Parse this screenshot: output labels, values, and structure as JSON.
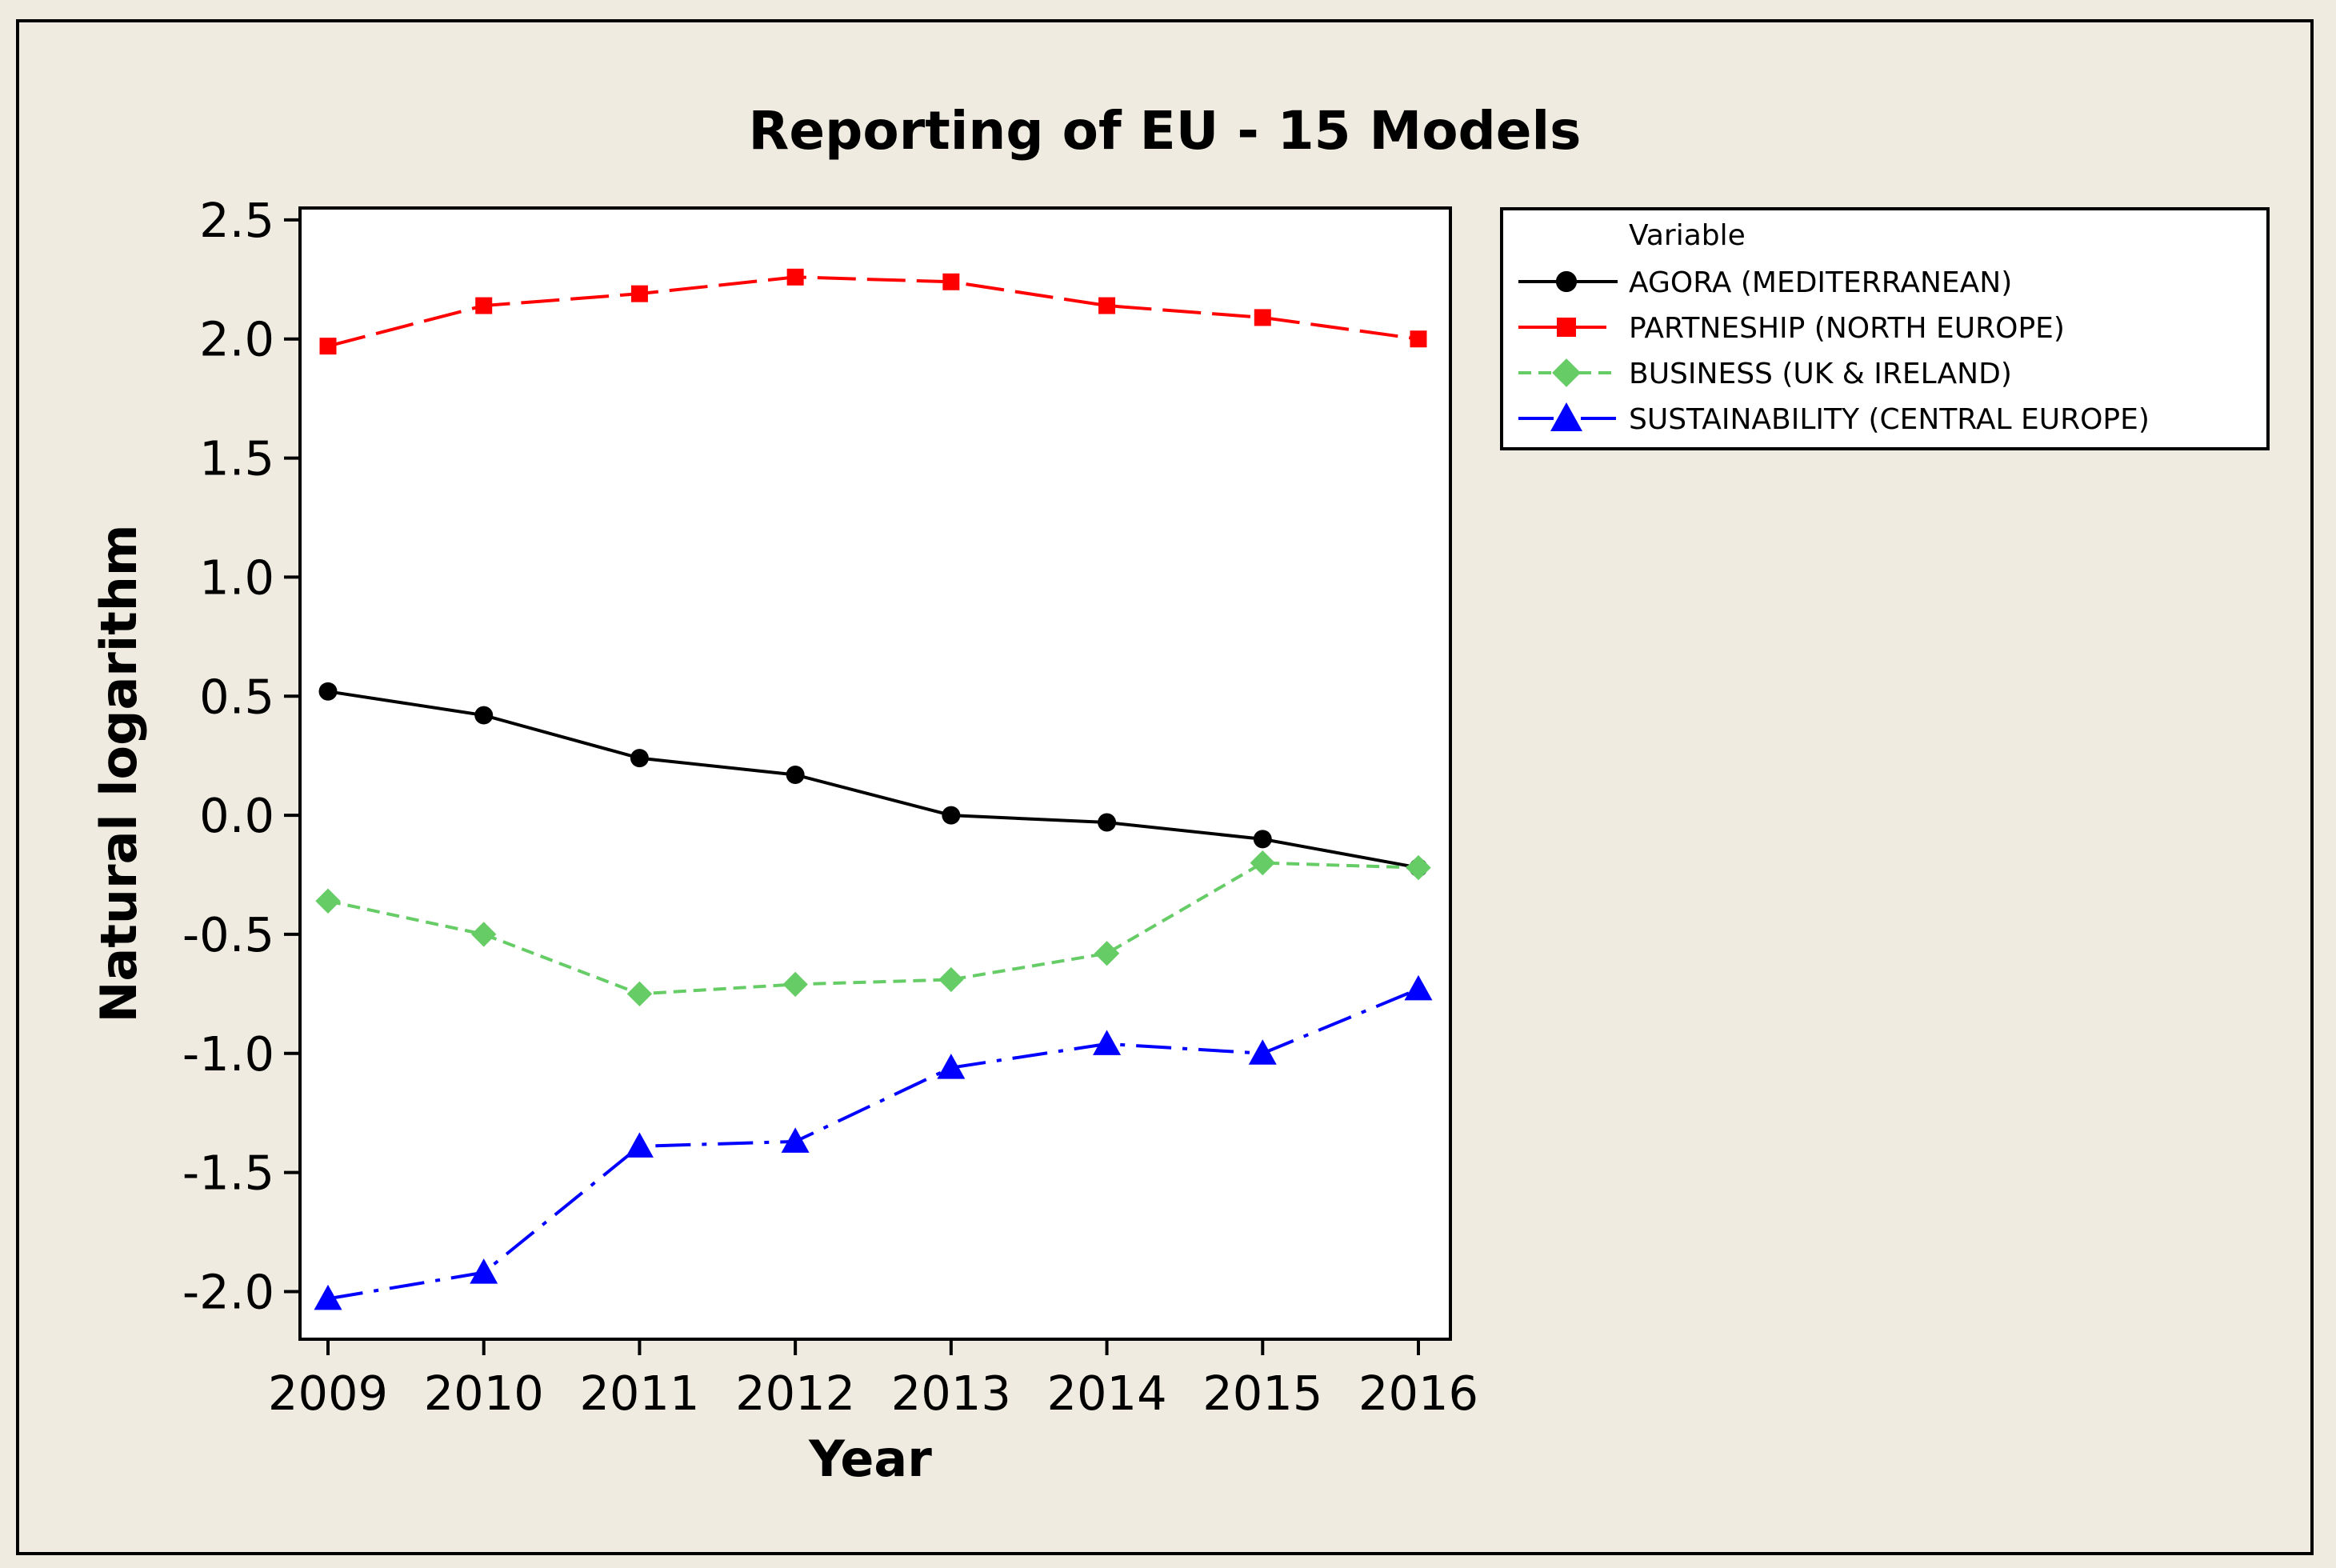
{
  "chart_data": {
    "type": "line",
    "title": "Reporting of EU - 15 Models",
    "xlabel": "Year",
    "ylabel": "Natural logarithm",
    "x": [
      2009,
      2010,
      2011,
      2012,
      2013,
      2014,
      2015,
      2016
    ],
    "x_tick_labels": [
      "2009",
      "2010",
      "2011",
      "2012",
      "2013",
      "2014",
      "2015",
      "2016"
    ],
    "ylim": [
      -2.2,
      2.55
    ],
    "y_ticks": [
      2.5,
      2.0,
      1.5,
      1.0,
      0.5,
      0.0,
      -0.5,
      -1.0,
      -1.5,
      -2.0
    ],
    "y_tick_labels": [
      "2.5",
      "2.0",
      "1.5",
      "1.0",
      "0.5",
      "0.0",
      "-0.5",
      "-1.0",
      "-1.5",
      "-2.0"
    ],
    "legend_title": "Variable",
    "legend_position": "top-right, outside plot",
    "series": [
      {
        "name": "AGORA (MEDITERRANEAN)",
        "color": "#000000",
        "marker": "circle",
        "line_style": "solid",
        "values": [
          0.52,
          0.42,
          0.24,
          0.17,
          0.0,
          -0.03,
          -0.1,
          -0.22
        ]
      },
      {
        "name": "PARTNESHIP (NORTH EUROPE)",
        "color": "#ff0000",
        "marker": "square",
        "line_style": "long-dash",
        "values": [
          1.97,
          2.14,
          2.19,
          2.26,
          2.24,
          2.14,
          2.09,
          2.0
        ]
      },
      {
        "name": "BUSINESS (UK & IRELAND)",
        "color": "#66cc66",
        "marker": "diamond",
        "line_style": "short-dash",
        "values": [
          -0.36,
          -0.5,
          -0.75,
          -0.71,
          -0.69,
          -0.58,
          -0.2,
          -0.22
        ]
      },
      {
        "name": "SUSTAINABILITY (CENTRAL EUROPE)",
        "color": "#0000ff",
        "marker": "triangle",
        "line_style": "dash-dot",
        "values": [
          -2.03,
          -1.92,
          -1.39,
          -1.37,
          -1.06,
          -0.96,
          -1.0,
          -0.73
        ]
      }
    ]
  },
  "colors": {
    "background": "#efebe1",
    "plot_background": "#ffffff",
    "frame": "#000000"
  }
}
